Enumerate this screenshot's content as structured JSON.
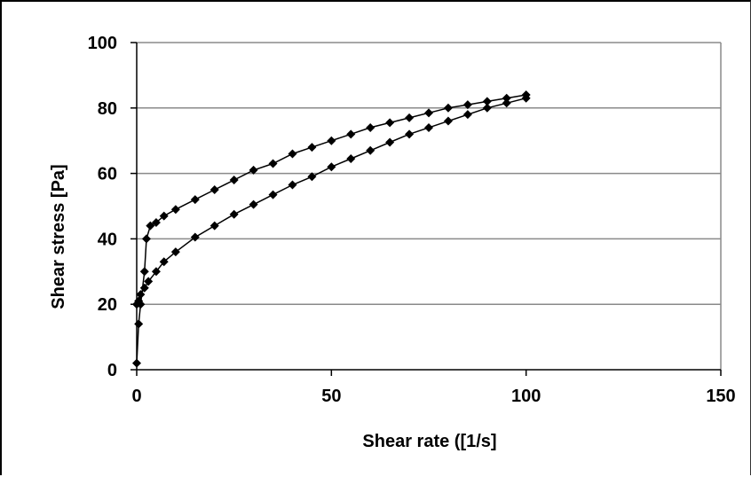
{
  "chart_data": {
    "type": "scatter",
    "title": "",
    "xlabel": "Shear rate ([1/s]",
    "ylabel": "Shear stress [Pa]",
    "xlim": [
      0,
      150
    ],
    "ylim": [
      0,
      100
    ],
    "x_ticks": [
      "0",
      "50",
      "100",
      "150"
    ],
    "y_ticks": [
      "0",
      "20",
      "40",
      "60",
      "80",
      "100"
    ],
    "grid": "horizontal",
    "legend": "none",
    "marker": "diamond",
    "color": "#000000",
    "series": [
      {
        "values": [
          [
            0,
            2
          ],
          [
            0.5,
            14
          ],
          [
            1,
            20
          ],
          [
            2,
            30
          ],
          [
            2.5,
            40
          ],
          [
            3.5,
            44
          ],
          [
            5,
            45
          ],
          [
            7,
            47
          ],
          [
            10,
            49
          ],
          [
            15,
            52
          ],
          [
            20,
            55
          ],
          [
            25,
            58
          ],
          [
            30,
            61
          ],
          [
            35,
            63
          ],
          [
            40,
            66
          ],
          [
            45,
            68
          ],
          [
            50,
            70
          ],
          [
            55,
            72
          ],
          [
            60,
            74
          ],
          [
            65,
            75.5
          ],
          [
            70,
            77
          ],
          [
            75,
            78.5
          ],
          [
            80,
            80
          ],
          [
            85,
            81
          ],
          [
            90,
            82
          ],
          [
            95,
            83
          ],
          [
            100,
            84
          ]
        ]
      },
      {
        "values": [
          [
            100,
            83
          ],
          [
            95,
            81.5
          ],
          [
            90,
            80
          ],
          [
            85,
            78
          ],
          [
            80,
            76
          ],
          [
            75,
            74
          ],
          [
            70,
            72
          ],
          [
            65,
            69.5
          ],
          [
            60,
            67
          ],
          [
            55,
            64.5
          ],
          [
            50,
            62
          ],
          [
            45,
            59
          ],
          [
            40,
            56.5
          ],
          [
            35,
            53.5
          ],
          [
            30,
            50.5
          ],
          [
            25,
            47.5
          ],
          [
            20,
            44
          ],
          [
            15,
            40.5
          ],
          [
            10,
            36
          ],
          [
            7,
            33
          ],
          [
            5,
            30
          ],
          [
            3,
            27
          ],
          [
            2,
            25
          ],
          [
            1,
            23
          ],
          [
            0.5,
            21
          ],
          [
            0,
            20
          ]
        ]
      }
    ]
  }
}
